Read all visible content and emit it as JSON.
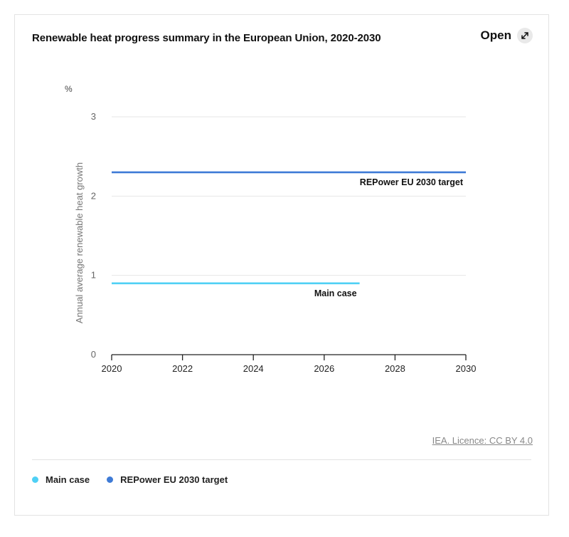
{
  "title": "Renewable heat progress summary in the European Union, 2020-2030",
  "open_label": "Open",
  "icons": {
    "open": "expand-arrow-icon"
  },
  "licence": "IEA. Licence: CC BY 4.0",
  "colors": {
    "main_case": "#4fd0f5",
    "target": "#3f7bd6",
    "grid": "#e6e6e6",
    "axis": "#222222"
  },
  "chart_data": {
    "type": "line",
    "title": "Renewable heat progress summary in the European Union, 2020-2030",
    "xlabel": "",
    "ylabel": "Annual average renewable heat growth",
    "yunit": "%",
    "xlim": [
      2020,
      2030
    ],
    "ylim": [
      0,
      3
    ],
    "xticks": [
      2020,
      2022,
      2024,
      2026,
      2028,
      2030
    ],
    "yticks": [
      0,
      1,
      2,
      3
    ],
    "grid": true,
    "legend_position": "bottom-left",
    "series": [
      {
        "name": "Main case",
        "x": [
          2020,
          2027
        ],
        "y": [
          0.9,
          0.9
        ],
        "label": "Main case"
      },
      {
        "name": "REPower EU 2030 target",
        "x": [
          2020,
          2030
        ],
        "y": [
          2.3,
          2.3
        ],
        "label": "REPower EU 2030 target"
      }
    ]
  }
}
